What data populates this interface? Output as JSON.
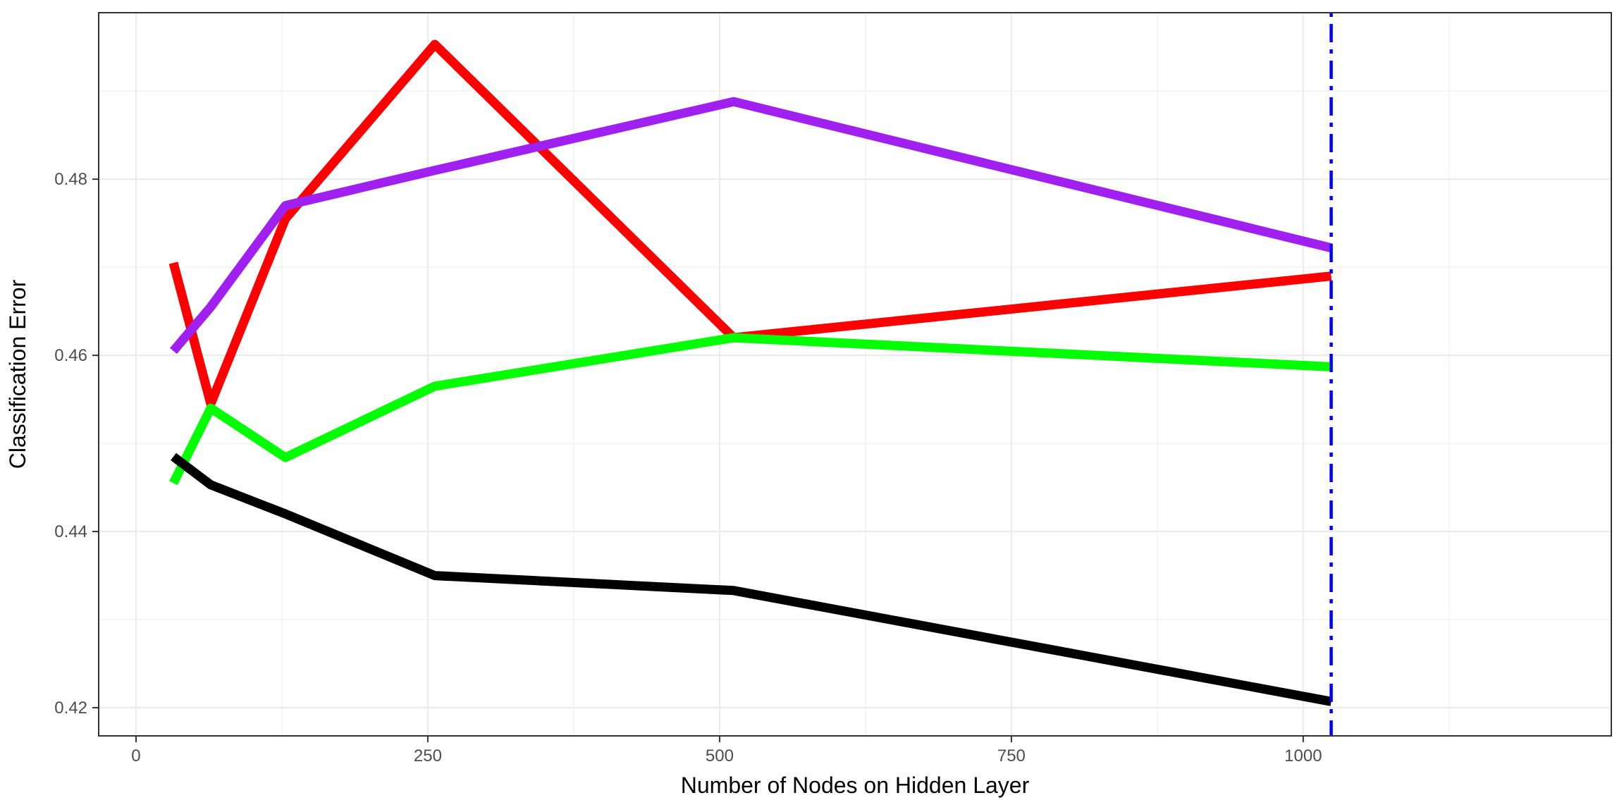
{
  "chart_data": {
    "type": "line",
    "title": "",
    "xlabel": "Number of Nodes on Hidden Layer",
    "ylabel": "Classification Error",
    "xlim": [
      -32,
      1264
    ],
    "ylim": [
      0.4168,
      0.4989
    ],
    "x_ticks": [
      0,
      250,
      500,
      750,
      1000
    ],
    "x_tick_labels": [
      "0",
      "250",
      "500",
      "750",
      "1000"
    ],
    "x_minor_ticks": [
      125,
      375,
      625,
      875,
      1125
    ],
    "y_ticks": [
      0.42,
      0.44,
      0.46,
      0.48
    ],
    "y_tick_labels": [
      "0.42",
      "0.44",
      "0.46",
      "0.48"
    ],
    "y_minor_ticks": [
      0.43,
      0.45,
      0.47,
      0.49
    ],
    "grid": true,
    "theme": "bw",
    "legend": "none",
    "x": [
      32,
      64,
      128,
      256,
      512,
      1024
    ],
    "series": [
      {
        "color": "#FF0000",
        "values": [
          0.4705,
          0.4545,
          0.4755,
          0.4953,
          0.462,
          0.469
        ]
      },
      {
        "color": "#A020F0",
        "values": [
          0.4605,
          0.4655,
          0.477,
          0.481,
          0.4888,
          0.4722
        ]
      },
      {
        "color": "#00FF00",
        "values": [
          0.4455,
          0.454,
          0.4484,
          0.4565,
          0.462,
          0.4587
        ]
      },
      {
        "color": "#000000",
        "values": [
          0.4485,
          0.4453,
          0.442,
          0.435,
          0.4333,
          0.4207
        ]
      }
    ],
    "vline": {
      "x": 1024,
      "color": "#0000FF",
      "style": "dot-dash"
    }
  }
}
